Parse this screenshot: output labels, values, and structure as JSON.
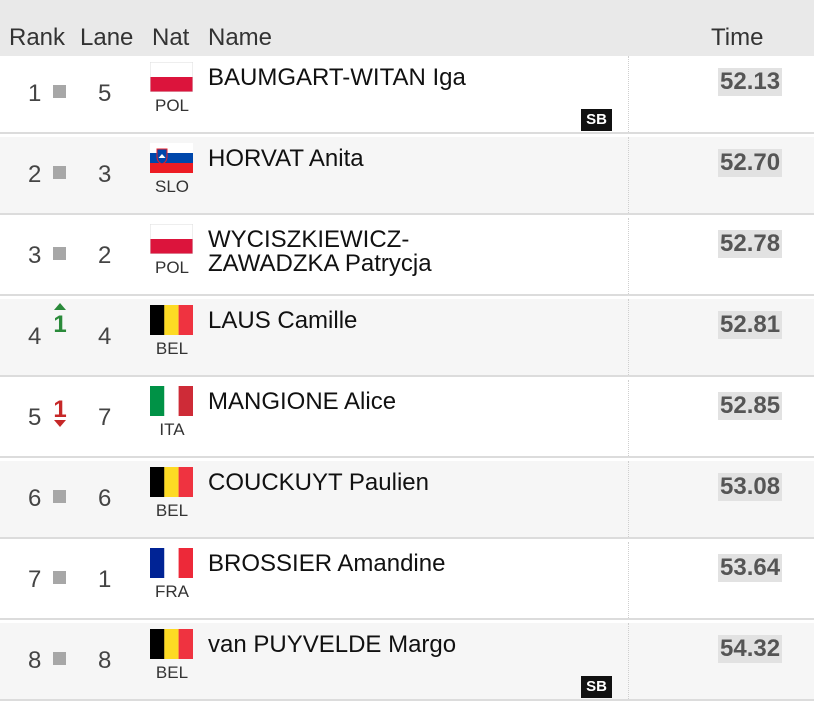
{
  "header": {
    "rank": "Rank",
    "lane": "Lane",
    "nat": "Nat",
    "name": "Name",
    "time": "Time"
  },
  "rows": [
    {
      "rank": "1",
      "lane": "5",
      "nat": "POL",
      "flag": "poland-flag-icon",
      "name": "BAUMGART-WITAN Iga",
      "time": "52.13",
      "badge": "SB"
    },
    {
      "rank": "2",
      "lane": "3",
      "nat": "SLO",
      "flag": "slovenia-flag-icon",
      "name": "HORVAT Anita",
      "time": "52.70"
    },
    {
      "rank": "3",
      "lane": "2",
      "nat": "POL",
      "flag": "poland-flag-icon",
      "name_line1": "WYCISZKIEWICZ-",
      "name_line2": "ZAWADZKA Patrycja",
      "time": "52.78"
    },
    {
      "rank": "4",
      "move": "1",
      "move_dir": "up",
      "lane": "4",
      "nat": "BEL",
      "flag": "belgium-flag-icon",
      "name": "LAUS Camille",
      "time": "52.81"
    },
    {
      "rank": "5",
      "move": "1",
      "move_dir": "down",
      "lane": "7",
      "nat": "ITA",
      "flag": "italy-flag-icon",
      "name": "MANGIONE Alice",
      "time": "52.85"
    },
    {
      "rank": "6",
      "lane": "6",
      "nat": "BEL",
      "flag": "belgium-flag-icon",
      "name": "COUCKUYT Paulien",
      "time": "53.08"
    },
    {
      "rank": "7",
      "lane": "1",
      "nat": "FRA",
      "flag": "france-flag-icon",
      "name": "BROSSIER Amandine",
      "time": "53.64"
    },
    {
      "rank": "8",
      "lane": "8",
      "nat": "BEL",
      "flag": "belgium-flag-icon",
      "name": "van PUYVELDE Margo",
      "time": "54.32",
      "badge": "SB"
    }
  ],
  "colors": {
    "header_bg": "#e9e9e9",
    "alt_row_bg": "#f6f6f6",
    "time_bg": "#e2e2e2",
    "move_up": "#2a8a3a",
    "move_down": "#c62828",
    "badge_bg": "#111111"
  }
}
